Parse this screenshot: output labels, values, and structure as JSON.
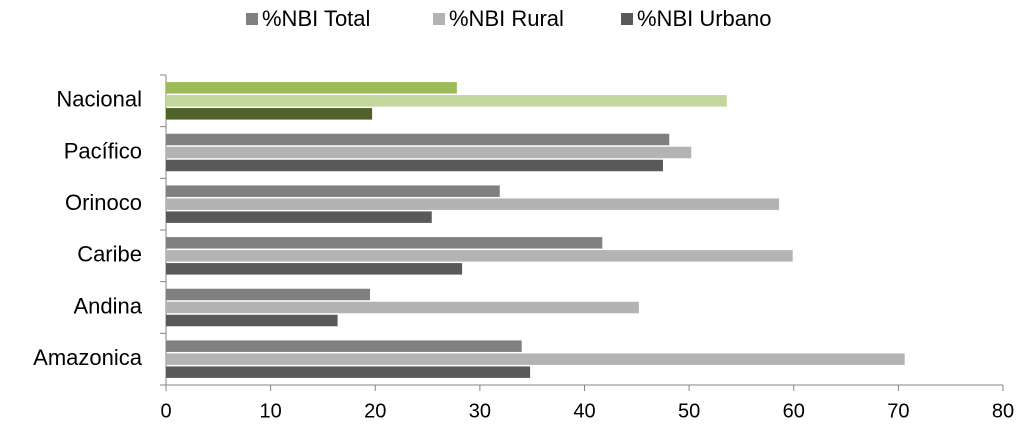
{
  "chart_data": {
    "type": "hbar",
    "categories": [
      "Nacional",
      "Pacífico",
      "Orinoco",
      "Caribe",
      "Andina",
      "Amazonica"
    ],
    "series": [
      {
        "name": "%NBI Total",
        "color": "#808080",
        "point_colors": [
          "#9bbb59",
          "#808080",
          "#808080",
          "#808080",
          "#808080",
          "#808080"
        ],
        "values": [
          27.8,
          48.1,
          31.9,
          41.7,
          19.5,
          34.0
        ]
      },
      {
        "name": "%NBI Rural",
        "color": "#b3b3b3",
        "point_colors": [
          "#c3d69b",
          "#b3b3b3",
          "#b3b3b3",
          "#b3b3b3",
          "#b3b3b3",
          "#b3b3b3"
        ],
        "values": [
          53.6,
          50.2,
          58.6,
          59.9,
          45.2,
          70.6
        ]
      },
      {
        "name": "%NBI Urbano",
        "color": "#595959",
        "point_colors": [
          "#4f6228",
          "#595959",
          "#595959",
          "#595959",
          "#595959",
          "#595959"
        ],
        "values": [
          19.7,
          47.5,
          25.4,
          28.3,
          16.4,
          34.8
        ]
      }
    ],
    "xlim": [
      0,
      80
    ],
    "xticks": [
      0,
      10,
      20,
      30,
      40,
      50,
      60,
      70,
      80
    ],
    "grid": false,
    "legend": "top"
  }
}
